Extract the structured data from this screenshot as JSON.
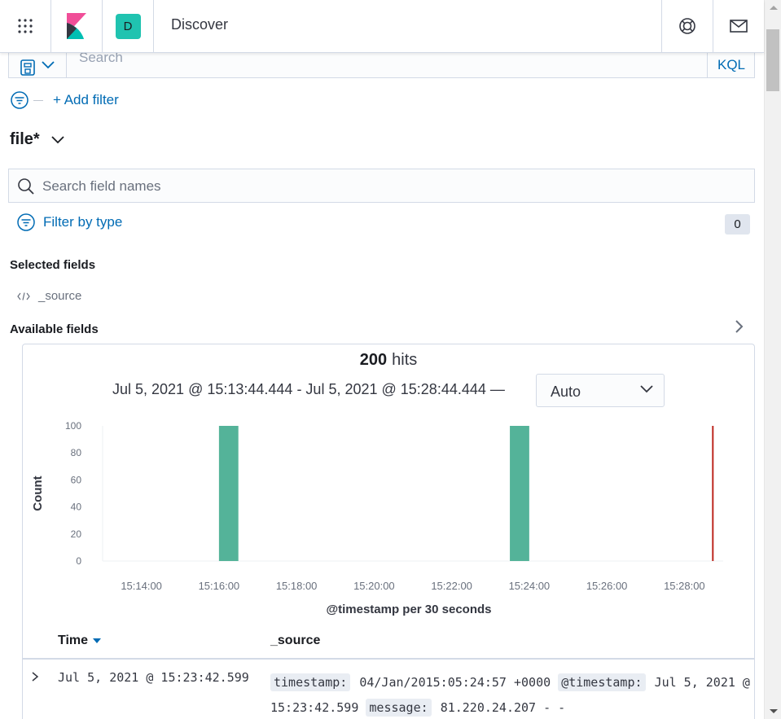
{
  "header": {
    "breadcrumb": "Discover",
    "space_initial": "D",
    "icons": [
      "apps-grid-icon",
      "kibana-logo",
      "help-icon",
      "mail-icon"
    ]
  },
  "query_bar": {
    "placeholder": "Search",
    "language": "KQL"
  },
  "filters": {
    "add_filter_label": "+ Add filter"
  },
  "sidebar": {
    "index_pattern": "file*",
    "field_search_placeholder": "Search field names",
    "filter_by_type_label": "Filter by type",
    "filter_count": "0",
    "selected_fields_title": "Selected fields",
    "selected_fields": [
      "_source"
    ],
    "available_fields_title": "Available fields"
  },
  "histogram": {
    "hits_count": "200",
    "hits_label": "hits",
    "time_range": "Jul 5, 2021 @ 15:13:44.444 - Jul 5, 2021 @ 15:28:44.444 —",
    "interval": "Auto"
  },
  "chart_data": {
    "type": "bar",
    "xlabel": "@timestamp per 30 seconds",
    "ylabel": "Count",
    "ylim": [
      0,
      100
    ],
    "yticks": [
      0,
      20,
      40,
      60,
      80,
      100
    ],
    "xlim": [
      "15:13:00",
      "15:29:00"
    ],
    "xticks": [
      "15:14:00",
      "15:16:00",
      "15:18:00",
      "15:20:00",
      "15:22:00",
      "15:24:00",
      "15:26:00",
      "15:28:00"
    ],
    "bars": [
      {
        "x": "15:16:00",
        "value": 100
      },
      {
        "x": "15:23:30",
        "value": 100
      }
    ],
    "current_time_marker": "15:28:44",
    "bar_color": "#54b399",
    "marker_color": "#bd271e"
  },
  "table": {
    "columns": [
      "Time",
      "_source"
    ],
    "rows": [
      {
        "time": "Jul 5, 2021 @ 15:23:42.599",
        "source": [
          {
            "key": "timestamp:",
            "value": "04/Jan/2015:05:24:57 +0000"
          },
          {
            "key": "@timestamp:",
            "value": "Jul 5, 2021 @ 15:23:42.599"
          },
          {
            "key": "message:",
            "value": "81.220.24.207 - -"
          }
        ]
      }
    ]
  }
}
